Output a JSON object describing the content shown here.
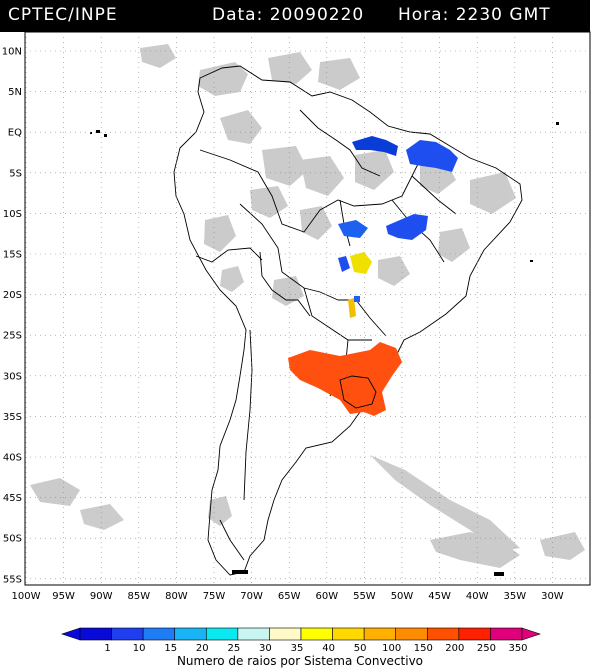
{
  "header": {
    "agency": "CPTEC/INPE",
    "date_text": "Data: 20090220",
    "time_text": "Hora: 2230 GMT"
  },
  "map": {
    "lat_labels": [
      "10N",
      "5N",
      "EQ",
      "5S",
      "10S",
      "15S",
      "20S",
      "25S",
      "30S",
      "35S",
      "40S",
      "45S",
      "50S",
      "55S"
    ],
    "lon_labels": [
      "100W",
      "95W",
      "90W",
      "85W",
      "80W",
      "75W",
      "70W",
      "65W",
      "60W",
      "55W",
      "50W",
      "45W",
      "40W",
      "35W",
      "30W"
    ],
    "grid": "dotted"
  },
  "colorbar": {
    "ticks": [
      "1",
      "10",
      "15",
      "20",
      "25",
      "30",
      "35",
      "40",
      "50",
      "100",
      "150",
      "200",
      "250",
      "350"
    ],
    "colors": [
      "#0a0ad8",
      "#1e3ef0",
      "#1f7cf5",
      "#19b4f5",
      "#0ae8f0",
      "#c8f5f0",
      "#fffac8",
      "#ffff00",
      "#ffd800",
      "#ffb000",
      "#ff8c00",
      "#ff5000",
      "#ff2000",
      "#e0007a"
    ],
    "caption": "Numero de raios por Sistema Convectivo"
  },
  "systems": [
    {
      "name": "amazon-mouth-cluster",
      "count_class": "1",
      "color": "#0a3cd8"
    },
    {
      "name": "northeast-brazil-cluster",
      "count_class": "1",
      "color": "#1e4ef0"
    },
    {
      "name": "central-brazil-cluster",
      "count_class": "10",
      "color": "#1e60f0"
    },
    {
      "name": "mato-grosso-cluster",
      "count_class": "35",
      "color": "#f0e000"
    },
    {
      "name": "paraguay-cluster",
      "count_class": "40",
      "color": "#f0c000"
    },
    {
      "name": "rio-grande-do-sul-cluster",
      "count_class": "200",
      "color": "#ff5010"
    }
  ]
}
